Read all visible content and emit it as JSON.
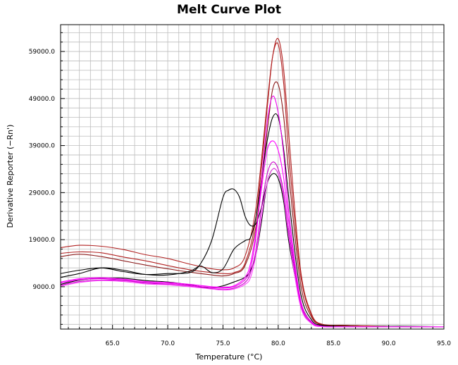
{
  "chart_data": {
    "type": "line",
    "title": "Melt Curve Plot",
    "xlabel": "Temperature (°C)",
    "ylabel": "Derivative Reporter (−Rn')",
    "xlim": [
      60.3,
      95.0
    ],
    "ylim": [
      0,
      64700
    ],
    "x_ticks": [
      65.0,
      70.0,
      75.0,
      80.0,
      85.0,
      90.0,
      95.0
    ],
    "x_tick_labels": [
      "65.0",
      "70.0",
      "75.0",
      "80.0",
      "85.0",
      "90.0",
      "95.0"
    ],
    "y_ticks": [
      9000,
      19000,
      29000,
      39000,
      49000,
      59000
    ],
    "y_tick_labels": [
      "9000.0",
      "19000.0",
      "29000.0",
      "39000.0",
      "49000.0",
      "59000.0"
    ],
    "grid": true,
    "series": [
      {
        "color": "#b22222",
        "x": [
          60.3,
          62,
          64,
          66,
          68,
          70,
          72,
          74,
          75,
          76,
          77,
          78,
          79,
          79.5,
          80,
          80.5,
          81,
          82,
          83,
          84,
          86,
          88,
          90,
          92,
          95
        ],
        "y": [
          17300,
          17800,
          17600,
          16900,
          15800,
          15000,
          13800,
          12800,
          12600,
          13000,
          15500,
          26000,
          48000,
          58000,
          60500,
          52000,
          36000,
          12000,
          3000,
          1000,
          800,
          600,
          600,
          500,
          500
        ]
      },
      {
        "color": "#b22222",
        "x": [
          60.3,
          62,
          64,
          66,
          68,
          70,
          72,
          74,
          75,
          76,
          77,
          78,
          79,
          79.5,
          80,
          80.5,
          81,
          82,
          83,
          84,
          86,
          88,
          90,
          92,
          95
        ],
        "y": [
          16100,
          16400,
          16200,
          15300,
          14500,
          13500,
          12600,
          12000,
          11800,
          12000,
          14000,
          24000,
          47000,
          58000,
          61700,
          55000,
          40000,
          13000,
          3300,
          1000,
          800,
          700,
          600,
          500,
          500
        ]
      },
      {
        "color": "#8b1a1a",
        "x": [
          60.3,
          62,
          64,
          66,
          68,
          70,
          72,
          74,
          75,
          76,
          77,
          78,
          79,
          79.5,
          80,
          80.5,
          81,
          82,
          83,
          84,
          86,
          88,
          90,
          92,
          95
        ],
        "y": [
          15400,
          15900,
          15400,
          14500,
          13600,
          12800,
          12100,
          11500,
          11300,
          11800,
          13500,
          22000,
          42000,
          51000,
          52000,
          45000,
          32000,
          10000,
          2600,
          900,
          700,
          600,
          600,
          500,
          500
        ]
      },
      {
        "color": "#000000",
        "x": [
          60.3,
          62,
          64,
          66,
          68,
          70,
          72,
          73,
          74,
          75,
          75.5,
          76,
          76.5,
          77,
          77.5,
          78,
          78.5,
          79,
          79.5,
          80,
          80.5,
          81,
          82,
          83,
          84,
          86,
          88,
          90,
          92,
          95
        ],
        "y": [
          11800,
          12500,
          13000,
          12200,
          11600,
          11800,
          12000,
          14000,
          19000,
          28000,
          29500,
          29700,
          28000,
          24000,
          22000,
          22500,
          26000,
          31000,
          33000,
          32000,
          27000,
          18000,
          6000,
          1500,
          700,
          600,
          500,
          600,
          500,
          500
        ]
      },
      {
        "color": "#000000",
        "x": [
          60.3,
          62,
          64,
          66,
          68,
          70,
          72,
          73,
          74,
          75,
          76,
          77,
          77.5,
          78,
          78.5,
          79,
          79.5,
          80,
          80.5,
          81,
          82,
          83,
          84,
          86,
          88,
          90,
          92,
          95
        ],
        "y": [
          11000,
          11800,
          13000,
          12500,
          11600,
          11500,
          12300,
          13400,
          12000,
          12800,
          17000,
          18800,
          19500,
          24000,
          32000,
          40000,
          45000,
          45000,
          38000,
          27000,
          8000,
          2000,
          800,
          600,
          500,
          600,
          600,
          500
        ]
      },
      {
        "color": "#000000",
        "x": [
          60.3,
          62,
          64,
          66,
          68,
          70,
          72,
          73,
          74,
          75,
          76,
          77,
          77.5,
          78,
          78.5,
          79,
          79.5,
          80,
          80.5,
          81,
          82,
          83,
          84,
          86,
          88,
          90,
          92,
          95
        ],
        "y": [
          9500,
          10400,
          10800,
          10800,
          10300,
          10000,
          9400,
          9000,
          8800,
          9200,
          10000,
          11000,
          12500,
          16000,
          23000,
          31000,
          34000,
          33000,
          28000,
          20000,
          6000,
          1500,
          600,
          500,
          500,
          600,
          500,
          500
        ]
      },
      {
        "color": "#ff00ff",
        "x": [
          60.3,
          62,
          64,
          66,
          68,
          70,
          72,
          74,
          75,
          76,
          77,
          77.5,
          78,
          78.5,
          79,
          79.5,
          80,
          80.5,
          81,
          82,
          83,
          84,
          86,
          88,
          90,
          92,
          95
        ],
        "y": [
          10000,
          10700,
          10900,
          10600,
          10100,
          9900,
          9500,
          9000,
          8900,
          9200,
          11000,
          14000,
          21000,
          30000,
          38000,
          40000,
          38000,
          32000,
          22000,
          6000,
          1600,
          600,
          500,
          500,
          500,
          500,
          500
        ]
      },
      {
        "color": "#ee00ee",
        "x": [
          60.3,
          62,
          64,
          66,
          68,
          70,
          72,
          74,
          75,
          76,
          77,
          77.5,
          78,
          78.5,
          79,
          79.5,
          80,
          80.5,
          81,
          82,
          83,
          84,
          86,
          88,
          90,
          92,
          95
        ],
        "y": [
          9800,
          10500,
          10700,
          10400,
          9900,
          9700,
          9300,
          8800,
          8700,
          9000,
          10500,
          13000,
          20000,
          32000,
          44000,
          49500,
          46000,
          37000,
          24000,
          6500,
          1500,
          600,
          500,
          500,
          500,
          500,
          500
        ]
      },
      {
        "color": "#cc00cc",
        "x": [
          60.3,
          62,
          64,
          66,
          68,
          70,
          72,
          74,
          75,
          76,
          77,
          77.5,
          78,
          78.5,
          79,
          79.5,
          80,
          80.5,
          81,
          82,
          83,
          84,
          86,
          88,
          90,
          92,
          95
        ],
        "y": [
          9300,
          10100,
          10400,
          10300,
          9800,
          9500,
          9100,
          8600,
          8400,
          8700,
          9900,
          12000,
          17000,
          26000,
          33000,
          35500,
          34000,
          29000,
          20000,
          5500,
          1300,
          500,
          500,
          500,
          500,
          500,
          500
        ]
      },
      {
        "color": "#ff44ff",
        "x": [
          60.3,
          62,
          64,
          66,
          68,
          70,
          72,
          74,
          75,
          76,
          77,
          77.5,
          78,
          78.5,
          79,
          79.5,
          80,
          80.5,
          81,
          82,
          83,
          84,
          86,
          88,
          90,
          92,
          95
        ],
        "y": [
          9100,
          9900,
          10300,
          10100,
          9600,
          9400,
          9000,
          8500,
          8300,
          8500,
          9500,
          11000,
          16000,
          24000,
          31000,
          34000,
          33000,
          28000,
          19000,
          5000,
          1200,
          500,
          500,
          500,
          500,
          500,
          500
        ]
      }
    ]
  }
}
